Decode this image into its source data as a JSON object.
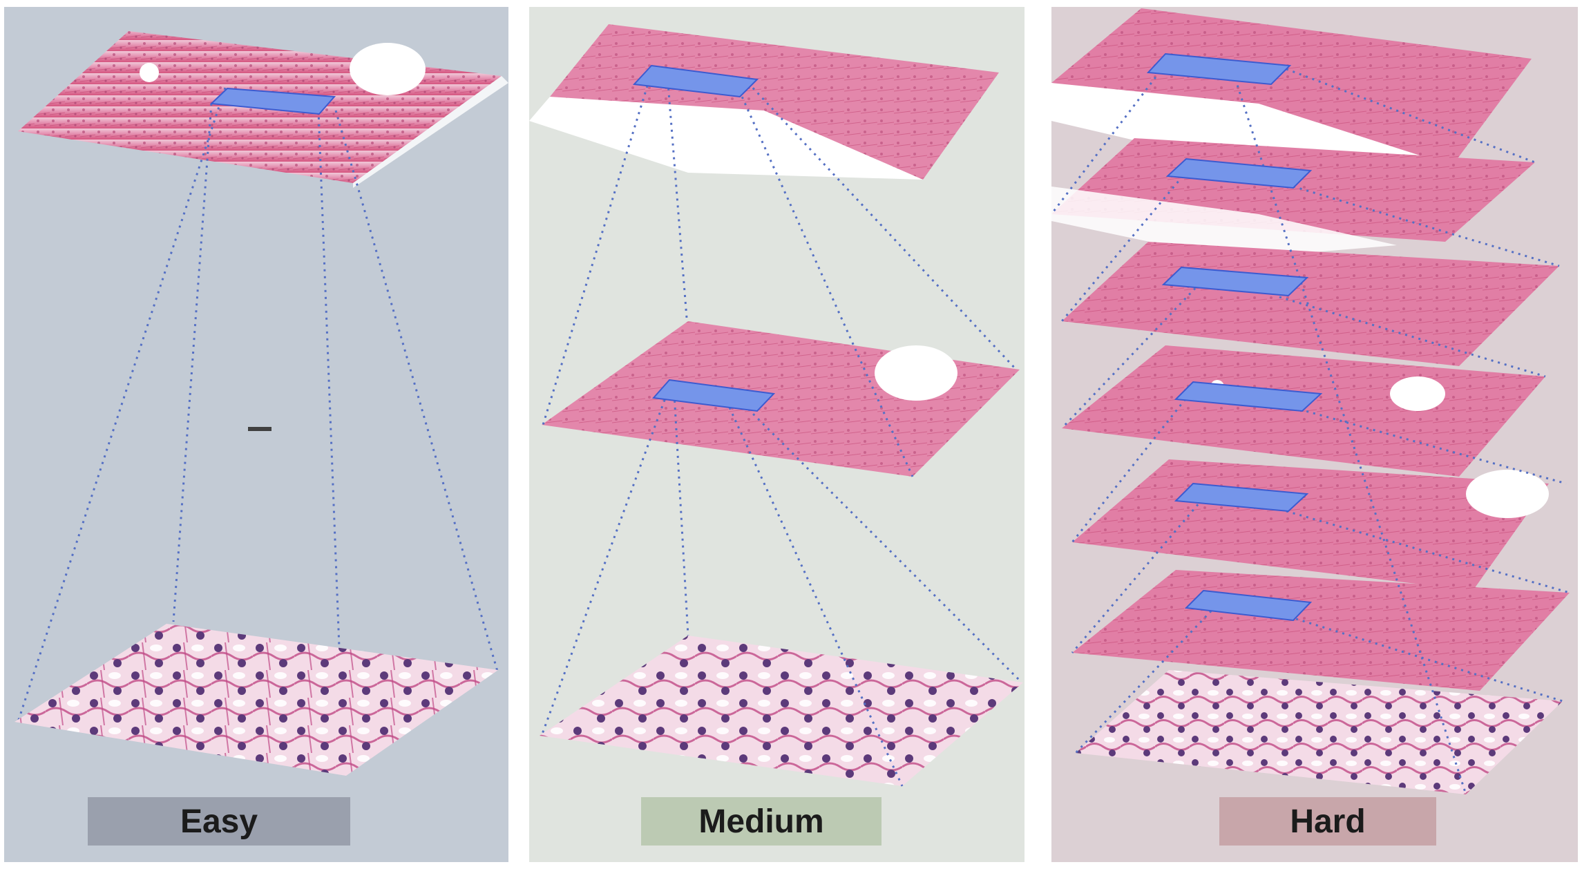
{
  "panels": [
    {
      "id": "easy",
      "label": "Easy",
      "panel_color": "#c3cbd5",
      "label_color": "#9aa0ad"
    },
    {
      "id": "medium",
      "label": "Medium",
      "panel_color": "#e0e4df",
      "label_color": "#bccab3"
    },
    {
      "id": "hard",
      "label": "Hard",
      "panel_color": "#dcd0d4",
      "label_color": "#c8a6aa"
    }
  ],
  "colors": {
    "roi_box": "#7595ea",
    "roi_border": "#3c5bd0",
    "dotted_lines": "#5570c4",
    "tissue_pink": "#d9668f",
    "tissue_light": "#f2c9d9"
  }
}
